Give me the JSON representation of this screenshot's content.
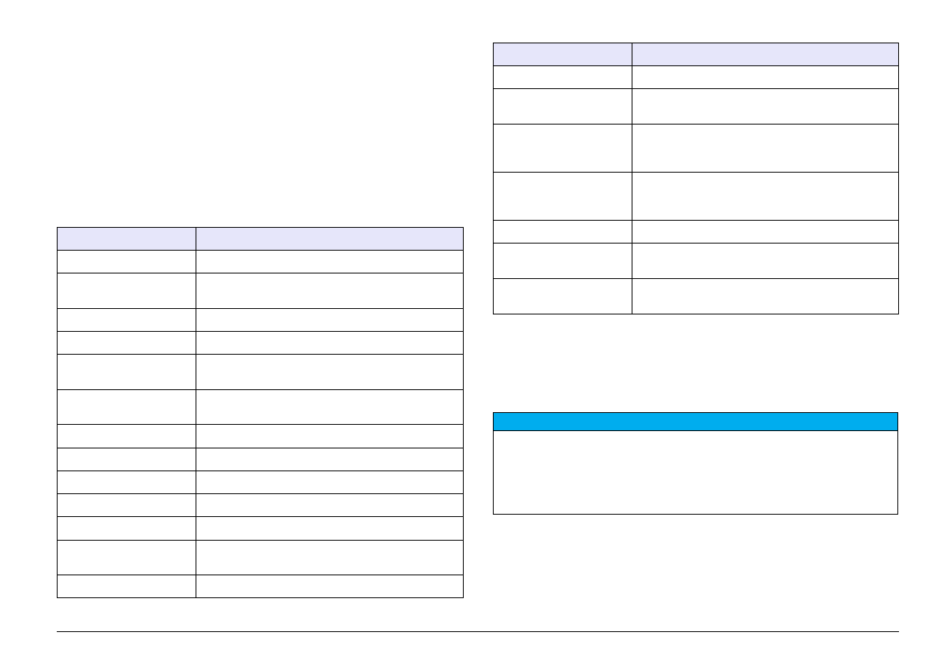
{
  "colors": {
    "table_header": "#e6e6fa",
    "notice_header": "#00adee"
  },
  "left_table": {
    "headers": [
      "",
      ""
    ],
    "rows": [
      [
        "",
        ""
      ],
      [
        "",
        ""
      ],
      [
        "",
        ""
      ],
      [
        "",
        ""
      ],
      [
        "",
        ""
      ],
      [
        "",
        ""
      ],
      [
        "",
        ""
      ],
      [
        "",
        ""
      ],
      [
        "",
        ""
      ],
      [
        "",
        ""
      ],
      [
        "",
        ""
      ],
      [
        "",
        ""
      ],
      [
        "",
        ""
      ]
    ]
  },
  "right_table": {
    "headers": [
      "",
      ""
    ],
    "rows": [
      [
        "",
        ""
      ],
      [
        "",
        ""
      ],
      [
        "",
        ""
      ],
      [
        "",
        ""
      ],
      [
        "",
        ""
      ],
      [
        "",
        ""
      ],
      [
        "",
        ""
      ]
    ]
  },
  "notice": {
    "title": "",
    "body": ""
  }
}
